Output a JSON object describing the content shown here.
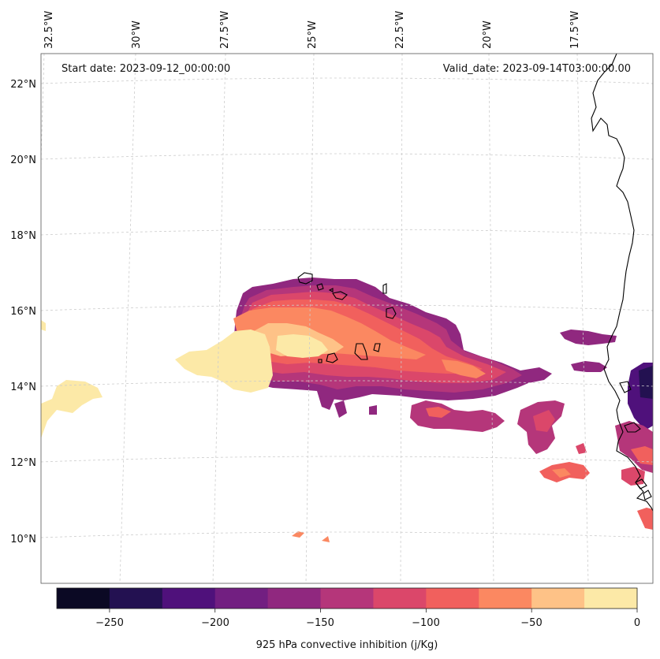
{
  "map": {
    "start_date": "Start date: 2023-09-12_00:00:00",
    "valid_date": "Valid_date: 2023-09-14T03:00:00.00",
    "lon_labels": [
      "32.5°W",
      "30°W",
      "27.5°W",
      "25°W",
      "22.5°W",
      "20°W",
      "17.5°W"
    ],
    "lat_labels": [
      "22°N",
      "20°N",
      "18°N",
      "16°N",
      "14°N",
      "12°N",
      "10°N"
    ],
    "region": "Cabo Verde and West African coast"
  },
  "colorbar": {
    "label": "925 hPa convective inhibition (j/Kg)",
    "ticks": [
      "−250",
      "−200",
      "−150",
      "−100",
      "−50",
      "0"
    ],
    "levels": [
      -275,
      -250,
      -225,
      -200,
      -175,
      -150,
      -125,
      -100,
      -75,
      -50,
      -25,
      0
    ],
    "colors": [
      "#0b0924",
      "#231151",
      "#4f117b",
      "#721f81",
      "#90287f",
      "#b5367a",
      "#db476a",
      "#f1605d",
      "#fb8861",
      "#fec287",
      "#fce9a7"
    ]
  },
  "colors": {
    "coastline": "#000000",
    "gridline": "#cccccc",
    "frame": "#555555"
  }
}
